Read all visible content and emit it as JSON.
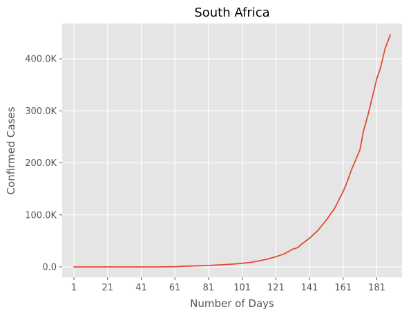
{
  "chart_data": {
    "type": "line",
    "title": "South Africa",
    "xlabel": "Number of Days",
    "ylabel": "Confirmed Cases",
    "xlim": [
      -6,
      196
    ],
    "ylim": [
      -20000,
      468000
    ],
    "xticks": [
      1,
      21,
      41,
      61,
      81,
      101,
      121,
      141,
      161,
      181
    ],
    "xtick_labels": [
      "1",
      "21",
      "41",
      "61",
      "81",
      "101",
      "121",
      "141",
      "161",
      "181"
    ],
    "yticks": [
      0,
      100000,
      200000,
      300000,
      400000
    ],
    "ytick_labels": [
      "0.0",
      "100.0K",
      "200.0K",
      "300.0K",
      "400.0K"
    ],
    "grid": true,
    "colors": {
      "background": "#e5e5e5",
      "grid": "#ffffff",
      "line": "#e24a33"
    },
    "series": [
      {
        "x": [
          1,
          11,
          21,
          31,
          41,
          51,
          61,
          66,
          71,
          76,
          81,
          86,
          91,
          96,
          101,
          106,
          111,
          116,
          121,
          126,
          131,
          134,
          136,
          141,
          146,
          151,
          156,
          161,
          163,
          166,
          171,
          173,
          176,
          181,
          183,
          186,
          189
        ],
        "y": [
          0,
          0,
          0,
          0,
          0,
          0,
          400,
          1200,
          1700,
          2200,
          2800,
          3500,
          4500,
          5500,
          6800,
          8600,
          11500,
          15000,
          19500,
          25000,
          34000,
          37000,
          43000,
          55000,
          70000,
          90000,
          113000,
          145000,
          160000,
          187000,
          225000,
          260000,
          295000,
          362000,
          380000,
          420000,
          446000
        ]
      }
    ]
  }
}
